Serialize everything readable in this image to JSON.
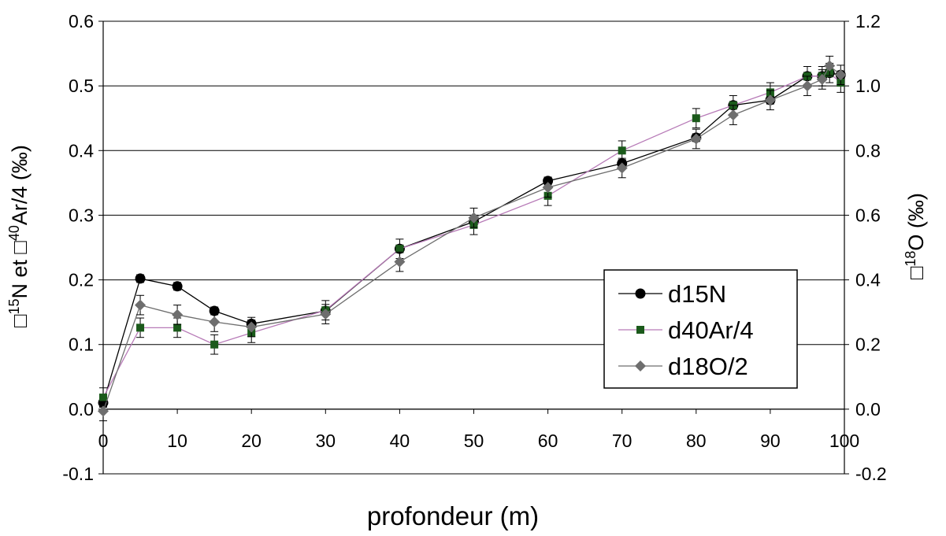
{
  "chart_data": {
    "type": "line",
    "xlabel": "profondeur (m)",
    "ylabel_left": {
      "pre": "",
      "sup1": "15",
      "mid": "N et ",
      "sup2": "40",
      "post": "Ar/4 (‰)"
    },
    "ylabel_right": {
      "pre": "",
      "sup1": "18",
      "post": "O (‰)"
    },
    "xlim": [
      0,
      100
    ],
    "ylim_left": [
      -0.1,
      0.6
    ],
    "ylim_right": [
      -0.2,
      1.2
    ],
    "xticks": [
      "0",
      "10",
      "20",
      "30",
      "40",
      "50",
      "60",
      "70",
      "80",
      "90",
      "100"
    ],
    "yticks_left": [
      "-0.1",
      "0.0",
      "0.1",
      "0.2",
      "0.3",
      "0.4",
      "0.5",
      "0.6"
    ],
    "yticks_right": [
      "-0.2",
      "0.0",
      "0.2",
      "0.4",
      "0.6",
      "0.8",
      "1.0",
      "1.2"
    ],
    "grid": "horizontal",
    "legend_position": "right-middle",
    "series": [
      {
        "name": "d15N",
        "marker": "circle",
        "marker_color": "#000000",
        "line_color": "#000000",
        "x": [
          0,
          5,
          10,
          15,
          20,
          30,
          40,
          50,
          60,
          70,
          80,
          85,
          90,
          95,
          97,
          98,
          99.5
        ],
        "y": [
          0.01,
          0.202,
          0.19,
          0.152,
          0.132,
          0.152,
          0.248,
          0.29,
          0.353,
          0.38,
          0.42,
          0.47,
          0.478,
          0.515,
          0.515,
          0.52,
          0.517
        ],
        "err": 0.006
      },
      {
        "name": "d40Ar/4",
        "marker": "square",
        "marker_color": "#1b5a1b",
        "line_color": "#b77ab7",
        "x": [
          0,
          5,
          10,
          15,
          20,
          30,
          40,
          50,
          60,
          70,
          80,
          85,
          90,
          95,
          97,
          98,
          99.5
        ],
        "y": [
          0.018,
          0.126,
          0.126,
          0.1,
          0.118,
          0.153,
          0.248,
          0.285,
          0.33,
          0.4,
          0.45,
          0.47,
          0.49,
          0.515,
          0.515,
          0.52,
          0.505
        ],
        "err": 0.015
      },
      {
        "name": "d18O/2",
        "marker": "diamond",
        "marker_color": "#6e6e6e",
        "line_color": "#6e6e6e",
        "x": [
          0,
          5,
          10,
          15,
          20,
          30,
          40,
          50,
          60,
          70,
          80,
          85,
          90,
          95,
          97,
          98,
          99.5
        ],
        "y": [
          -0.003,
          0.161,
          0.146,
          0.135,
          0.127,
          0.147,
          0.228,
          0.296,
          0.343,
          0.373,
          0.418,
          0.455,
          0.478,
          0.5,
          0.51,
          0.531,
          0.517
        ],
        "err": 0.015
      }
    ]
  }
}
